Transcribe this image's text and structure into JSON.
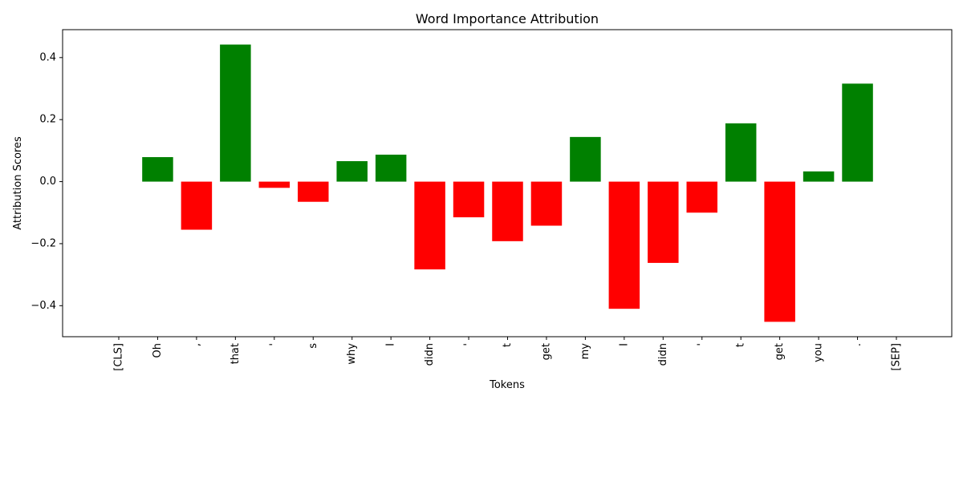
{
  "chart_data": {
    "type": "bar",
    "title": "Word Importance Attribution",
    "xlabel": "Tokens",
    "ylabel": "Attribution Scores",
    "categories": [
      "[CLS]",
      "Oh",
      ",",
      "that",
      "'",
      "s",
      "why",
      "I",
      "didn",
      "'",
      "t",
      "get",
      "my",
      "I",
      "didn",
      "'",
      "t",
      "get",
      "you",
      ".",
      "[SEP]"
    ],
    "values": [
      0.0,
      0.079,
      -0.155,
      0.442,
      -0.02,
      -0.065,
      0.066,
      0.087,
      -0.283,
      -0.115,
      -0.192,
      -0.142,
      0.144,
      -0.41,
      -0.262,
      -0.1,
      0.188,
      -0.452,
      0.033,
      0.316,
      0.0
    ],
    "ylim": [
      -0.5,
      0.49
    ],
    "yticks": [
      -0.4,
      -0.2,
      0.0,
      0.2,
      0.4
    ],
    "ytick_labels": [
      "−0.4",
      "−0.2",
      "0.0",
      "0.2",
      "0.4"
    ],
    "colors": {
      "positive": "#008000",
      "negative": "#ff0000",
      "axis": "#000000"
    },
    "grid": false
  }
}
